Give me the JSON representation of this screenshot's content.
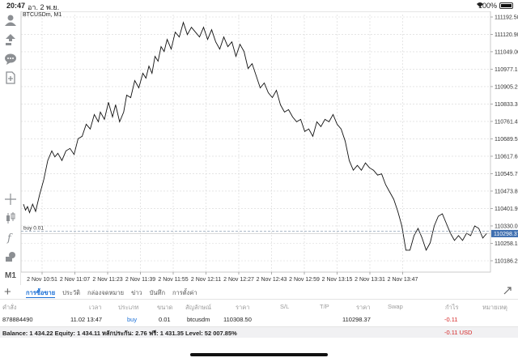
{
  "status_bar": {
    "time": "20:47",
    "date": "อา. 2 พ.ย.",
    "battery": "100%"
  },
  "toolbar": {
    "top_icons": [
      "user-icon",
      "trade-icon",
      "chat-icon",
      "new-doc-icon"
    ],
    "bottom_icons": [
      "crosshair-icon",
      "chart-type-icon",
      "indicators-icon",
      "objects-icon"
    ],
    "timeframe": "M1"
  },
  "chart": {
    "title": "BTCUSDm, M1",
    "buy_line_label": "buy 0.01",
    "current_price_label": "110298.37",
    "y_labels": [
      "111192.50",
      "111120.90",
      "111049.00",
      "110977.10",
      "110905.20",
      "110833.30",
      "110761.40",
      "110689.50",
      "110617.60",
      "110545.70",
      "110473.80",
      "110401.90",
      "110330.00",
      "110258.10",
      "110186.20"
    ],
    "x_labels": [
      "2 Nov 10:51",
      "2 Nov 11:07",
      "2 Nov 11:23",
      "2 Nov 11:39",
      "2 Nov 11:55",
      "2 Nov 12:11",
      "2 Nov 12:27",
      "2 Nov 12:43",
      "2 Nov 12:59",
      "2 Nov 13:15",
      "2 Nov 13:31",
      "2 Nov 13:47"
    ]
  },
  "chart_data": {
    "type": "line",
    "title": "BTCUSDm, M1",
    "xlabel": "",
    "ylabel": "",
    "ylim": [
      110186.2,
      111192.5
    ],
    "x": [
      "2 Nov 10:51",
      "2 Nov 11:07",
      "2 Nov 11:23",
      "2 Nov 11:39",
      "2 Nov 11:55",
      "2 Nov 12:11",
      "2 Nov 12:27",
      "2 Nov 12:43",
      "2 Nov 12:59",
      "2 Nov 13:15",
      "2 Nov 13:31",
      "2 Nov 13:47"
    ],
    "points": [
      [
        0,
        110420
      ],
      [
        2,
        110395
      ],
      [
        4,
        110410
      ],
      [
        6,
        110385
      ],
      [
        9,
        110420
      ],
      [
        12,
        110390
      ],
      [
        16,
        110460
      ],
      [
        20,
        110520
      ],
      [
        24,
        110600
      ],
      [
        28,
        110640
      ],
      [
        31,
        110615
      ],
      [
        34,
        110630
      ],
      [
        38,
        110600
      ],
      [
        42,
        110640
      ],
      [
        46,
        110650
      ],
      [
        50,
        110625
      ],
      [
        54,
        110690
      ],
      [
        58,
        110700
      ],
      [
        62,
        110750
      ],
      [
        66,
        110730
      ],
      [
        70,
        110790
      ],
      [
        74,
        110760
      ],
      [
        76,
        110800
      ],
      [
        80,
        110770
      ],
      [
        84,
        110840
      ],
      [
        88,
        110780
      ],
      [
        91,
        110830
      ],
      [
        95,
        110760
      ],
      [
        99,
        110800
      ],
      [
        102,
        110870
      ],
      [
        106,
        110860
      ],
      [
        110,
        110930
      ],
      [
        114,
        110900
      ],
      [
        118,
        110960
      ],
      [
        121,
        110940
      ],
      [
        124,
        110990
      ],
      [
        127,
        110960
      ],
      [
        130,
        111030
      ],
      [
        133,
        111010
      ],
      [
        136,
        111070
      ],
      [
        139,
        111050
      ],
      [
        142,
        111100
      ],
      [
        146,
        111060
      ],
      [
        150,
        111130
      ],
      [
        154,
        111110
      ],
      [
        158,
        111170
      ],
      [
        162,
        111120
      ],
      [
        166,
        111150
      ],
      [
        170,
        111130
      ],
      [
        174,
        111110
      ],
      [
        178,
        111150
      ],
      [
        182,
        111100
      ],
      [
        186,
        111140
      ],
      [
        190,
        111090
      ],
      [
        194,
        111060
      ],
      [
        198,
        111110
      ],
      [
        202,
        111070
      ],
      [
        206,
        111090
      ],
      [
        210,
        111030
      ],
      [
        214,
        111080
      ],
      [
        218,
        111050
      ],
      [
        222,
        110980
      ],
      [
        226,
        111000
      ],
      [
        230,
        110950
      ],
      [
        234,
        110900
      ],
      [
        238,
        110920
      ],
      [
        242,
        110880
      ],
      [
        246,
        110860
      ],
      [
        250,
        110890
      ],
      [
        254,
        110830
      ],
      [
        258,
        110800
      ],
      [
        262,
        110810
      ],
      [
        266,
        110780
      ],
      [
        270,
        110760
      ],
      [
        274,
        110770
      ],
      [
        278,
        110720
      ],
      [
        282,
        110730
      ],
      [
        286,
        110700
      ],
      [
        290,
        110760
      ],
      [
        294,
        110740
      ],
      [
        298,
        110770
      ],
      [
        302,
        110760
      ],
      [
        306,
        110790
      ],
      [
        310,
        110750
      ],
      [
        314,
        110730
      ],
      [
        318,
        110680
      ],
      [
        322,
        110600
      ],
      [
        326,
        110560
      ],
      [
        330,
        110580
      ],
      [
        334,
        110560
      ],
      [
        338,
        110590
      ],
      [
        342,
        110570
      ],
      [
        346,
        110560
      ],
      [
        350,
        110540
      ],
      [
        354,
        110545
      ],
      [
        358,
        110500
      ],
      [
        362,
        110470
      ],
      [
        366,
        110440
      ],
      [
        370,
        110390
      ],
      [
        374,
        110330
      ],
      [
        378,
        110230
      ],
      [
        382,
        110230
      ],
      [
        386,
        110290
      ],
      [
        390,
        110320
      ],
      [
        394,
        110280
      ],
      [
        398,
        110230
      ],
      [
        402,
        110260
      ],
      [
        406,
        110330
      ],
      [
        410,
        110370
      ],
      [
        414,
        110380
      ],
      [
        418,
        110340
      ],
      [
        422,
        110300
      ],
      [
        426,
        110270
      ],
      [
        430,
        110290
      ],
      [
        434,
        110270
      ],
      [
        438,
        110300
      ],
      [
        442,
        110290
      ],
      [
        446,
        110330
      ],
      [
        450,
        110320
      ],
      [
        454,
        110280
      ],
      [
        458,
        110300
      ]
    ]
  },
  "tabs": [
    "การซื้อขาย",
    "ประวัติ",
    "กล่องจดหมาย",
    "ข่าว",
    "บันทึก",
    "การตั้งค่า"
  ],
  "table": {
    "headers": [
      "คำสั่ง",
      "เวลา",
      "ประเภท",
      "ขนาด",
      "สัญลักษณ์",
      "ราคา",
      "S/L",
      "T/P",
      "ราคา",
      "Swap",
      "กำไร",
      "หมายเหตุ"
    ],
    "row": {
      "order": "878884490",
      "time": "11.02 13:47",
      "type": "buy",
      "size": "0.01",
      "symbol": "btcusdm",
      "open_price": "110308.50",
      "current_price": "110298.37",
      "profit": "-0.11"
    }
  },
  "balance": {
    "text": "Balance: 1 434.22 Equity: 1 434.11 หลักประกัน: 2.76 ฟรี: 1 431.35 Level: 52 007.85%",
    "total": "-0.11  USD"
  },
  "colors": {
    "accent": "#1a6fd6",
    "loss": "#d42525",
    "price_tag": "#3f6fb0"
  }
}
